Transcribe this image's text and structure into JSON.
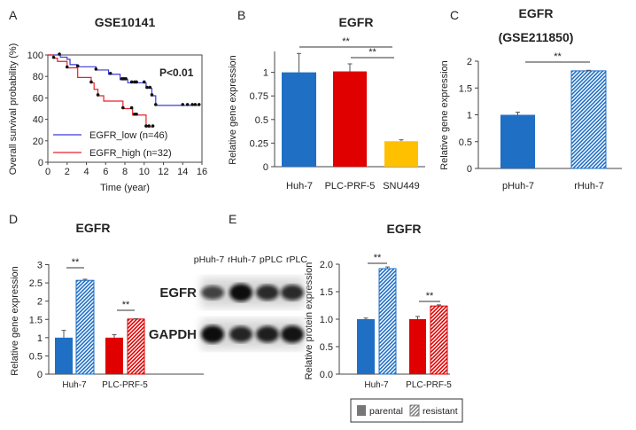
{
  "colors": {
    "blue": "#1f6fc5",
    "red": "#e00000",
    "yellow": "#ffc000",
    "km_blue": "#3a3ad8",
    "km_red": "#e8202a",
    "axis": "#444444"
  },
  "chart_data": [
    {
      "panel": "A",
      "type": "line",
      "subtype": "kaplan-meier",
      "title": "GSE10141",
      "xlabel": "Time (year)",
      "ylabel": "Overall survival probability (%)",
      "xlim": [
        0,
        16
      ],
      "ylim": [
        0,
        100
      ],
      "xticks": [
        0,
        2,
        4,
        6,
        8,
        10,
        12,
        14,
        16
      ],
      "yticks": [
        0,
        20,
        40,
        60,
        80,
        100
      ],
      "annotation": "P<0.01",
      "legend_position": "bottom-left",
      "series": [
        {
          "name": "EGFR_low (n=46)",
          "color_key": "km_blue",
          "steps": [
            [
              0,
              100
            ],
            [
              1.3,
              98
            ],
            [
              2,
              96
            ],
            [
              2.3,
              91
            ],
            [
              3,
              89
            ],
            [
              5,
              86
            ],
            [
              6.3,
              82
            ],
            [
              7.5,
              77
            ],
            [
              8.3,
              74
            ],
            [
              10.2,
              69
            ],
            [
              10.8,
              62
            ],
            [
              11.2,
              53
            ],
            [
              15.7,
              53
            ]
          ],
          "censored": [
            1.2,
            3.1,
            5,
            6.5,
            7.7,
            7.9,
            8.1,
            8.7,
            9,
            9.2,
            10,
            10.3,
            10.6,
            10.8,
            11.2,
            14,
            14.5,
            15,
            15.3,
            15.7
          ]
        },
        {
          "name": "EGFR_high (n=32)",
          "color_key": "km_red",
          "steps": [
            [
              0,
              100
            ],
            [
              0.6,
              97
            ],
            [
              1,
              94
            ],
            [
              2,
              88
            ],
            [
              3.1,
              79
            ],
            [
              4.5,
              74
            ],
            [
              4.8,
              68
            ],
            [
              5.2,
              62
            ],
            [
              5.8,
              57
            ],
            [
              7.8,
              50
            ],
            [
              8.8,
              44
            ],
            [
              10.2,
              33
            ],
            [
              10.9,
              33
            ]
          ],
          "censored": [
            0.6,
            2,
            4.5,
            5.2,
            7.8,
            8.7,
            9,
            9.2,
            10.2,
            10.5,
            10.9
          ]
        }
      ]
    },
    {
      "panel": "B",
      "type": "bar",
      "title": "EGFR",
      "ylabel": "Relative gene expression",
      "ylim": [
        0,
        1.25
      ],
      "yticks": [
        0,
        0.25,
        0.5,
        0.75,
        1
      ],
      "ytick_labels": [
        "0",
        "0.25",
        "0.5",
        "0.75",
        "1"
      ],
      "categories": [
        "Huh-7",
        "PLC-PRF-5",
        "SNU449"
      ],
      "bars": [
        {
          "value": 1.0,
          "error": 0.2,
          "color_key": "blue",
          "hatched": false
        },
        {
          "value": 1.01,
          "error": 0.08,
          "color_key": "red",
          "hatched": false
        },
        {
          "value": 0.27,
          "error": 0.015,
          "color_key": "yellow",
          "hatched": false
        }
      ],
      "significance": [
        {
          "from": 0,
          "to": 2,
          "label": "**"
        },
        {
          "from": 1,
          "to": 2,
          "label": "**"
        }
      ]
    },
    {
      "panel": "C",
      "type": "bar",
      "title": "EGFR",
      "subtitle": "(GSE211850)",
      "ylabel": "Relative gene expression",
      "ylim": [
        0,
        2
      ],
      "yticks": [
        0,
        0.5,
        1,
        1.5,
        2
      ],
      "ytick_labels": [
        "0",
        "0.5",
        "1",
        "1.5",
        "2"
      ],
      "categories": [
        "pHuh-7",
        "rHuh-7"
      ],
      "bars": [
        {
          "value": 1.0,
          "error": 0.05,
          "color_key": "blue",
          "hatched": false
        },
        {
          "value": 1.82,
          "error": 0.01,
          "color_key": "blue",
          "hatched": true
        }
      ],
      "significance": [
        {
          "from": 0,
          "to": 1,
          "label": "**"
        }
      ]
    },
    {
      "panel": "D",
      "type": "bar",
      "title": "EGFR",
      "ylabel": "Relative gene expression",
      "ylim": [
        0,
        3
      ],
      "yticks": [
        0,
        0.5,
        1,
        1.5,
        2,
        2.5,
        3
      ],
      "ytick_labels": [
        "0",
        "0.5",
        "1",
        "1.5",
        "2",
        "2.5",
        "3"
      ],
      "categories": [
        "Huh-7",
        "PLC-PRF-5"
      ],
      "bars": [
        {
          "group": 0,
          "value": 1.0,
          "error": 0.2,
          "color_key": "blue",
          "hatched": false
        },
        {
          "group": 0,
          "value": 2.57,
          "error": 0.03,
          "color_key": "blue",
          "hatched": true
        },
        {
          "group": 1,
          "value": 1.0,
          "error": 0.08,
          "color_key": "red",
          "hatched": false
        },
        {
          "group": 1,
          "value": 1.51,
          "error": 0.01,
          "color_key": "red",
          "hatched": true
        }
      ],
      "significance": [
        {
          "from": 0,
          "to": 1,
          "label": "**"
        },
        {
          "from": 2,
          "to": 3,
          "label": "**"
        }
      ]
    },
    {
      "panel": "E",
      "type": "bar",
      "title": "EGFR",
      "ylabel": "Relative protein expression",
      "ylim": [
        0,
        2
      ],
      "yticks": [
        0,
        0.5,
        1,
        1.5,
        2
      ],
      "ytick_labels": [
        "0.0",
        "0.5",
        "1.0",
        "1.5",
        "2.0"
      ],
      "categories": [
        "Huh-7",
        "PLC-PRF-5"
      ],
      "bars": [
        {
          "group": 0,
          "value": 1.0,
          "error": 0.02,
          "color_key": "blue",
          "hatched": false
        },
        {
          "group": 0,
          "value": 1.92,
          "error": 0.03,
          "color_key": "blue",
          "hatched": true
        },
        {
          "group": 1,
          "value": 1.0,
          "error": 0.05,
          "color_key": "red",
          "hatched": false
        },
        {
          "group": 1,
          "value": 1.24,
          "error": 0.02,
          "color_key": "red",
          "hatched": true
        }
      ],
      "significance": [
        {
          "from": 0,
          "to": 1,
          "label": "**"
        },
        {
          "from": 2,
          "to": 3,
          "label": "**"
        }
      ],
      "legend": {
        "items": [
          "parental",
          "resistant"
        ],
        "position": "bottom-right"
      }
    }
  ],
  "blot": {
    "lanes": [
      "pHuh-7",
      "rHuh-7",
      "pPLC",
      "rPLC"
    ],
    "rows": [
      "EGFR",
      "GAPDH"
    ],
    "band_intensity": {
      "EGFR": [
        0.55,
        1.0,
        0.75,
        0.75
      ],
      "GAPDH": [
        1.0,
        0.8,
        0.85,
        0.95
      ]
    }
  }
}
